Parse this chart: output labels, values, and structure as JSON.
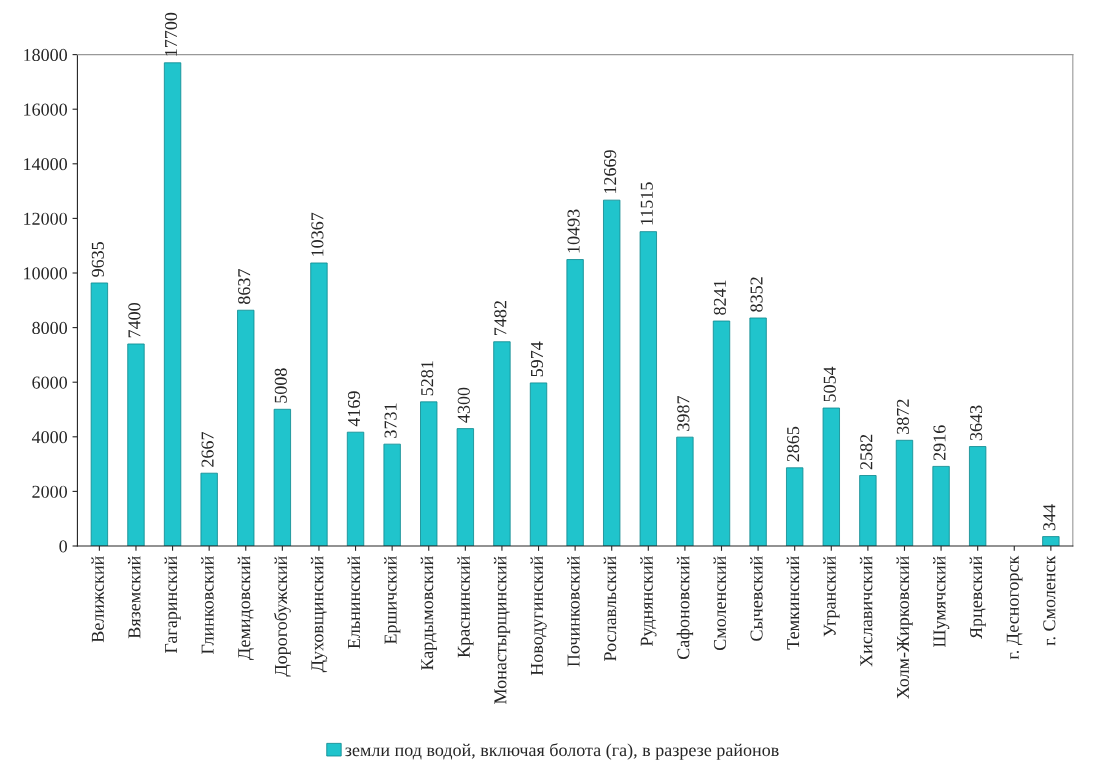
{
  "chart_data": {
    "type": "bar",
    "categories": [
      "Велижский",
      "Вяземский",
      "Гагаринский",
      "Глинковский",
      "Демидовский",
      "Дорогобужский",
      "Духовщинский",
      "Ельнинский",
      "Ершичский",
      "Кардымовский",
      "Краснинский",
      "Монастырщинский",
      "Новодугинский",
      "Починковский",
      "Рославльский",
      "Руднянский",
      "Сафоновский",
      "Смоленский",
      "Сычевский",
      "Темкинский",
      "Угранский",
      "Хиславичский",
      "Холм-Жирковский",
      "Шумячский",
      "Ярцевский",
      "г. Десногорск",
      "г. Смоленск"
    ],
    "series": [
      {
        "name": "земли под водой, включая болота (га), в разрезе районов",
        "color": "#20c4cc",
        "values": [
          9635,
          7400,
          17700,
          2667,
          8637,
          5008,
          10367,
          4169,
          3731,
          5281,
          4300,
          7482,
          5974,
          10493,
          12669,
          11515,
          3987,
          8241,
          8352,
          2865,
          5054,
          2582,
          3872,
          2916,
          3643,
          null,
          344
        ]
      }
    ],
    "ylim": [
      0,
      18000
    ],
    "yticks": [
      0,
      2000,
      4000,
      6000,
      8000,
      10000,
      12000,
      14000,
      16000,
      18000
    ],
    "data_labels": true,
    "grid": false,
    "legend": "bottom"
  }
}
